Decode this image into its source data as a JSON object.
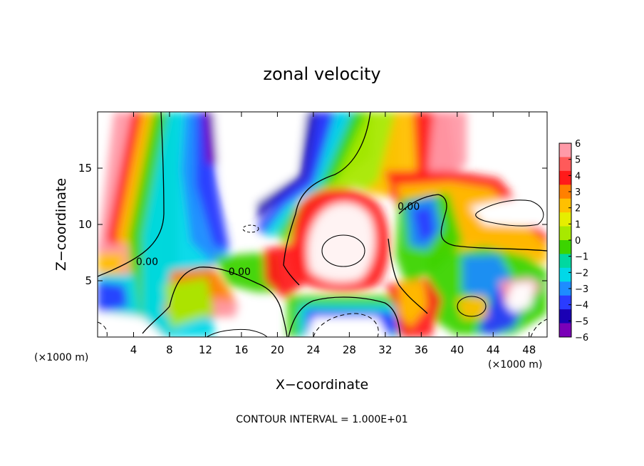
{
  "chart_data": {
    "type": "heatmap",
    "title": "zonal velocity",
    "xlabel": "X−coordinate",
    "ylabel": "Z−coordinate",
    "x_unit_left": "(×1000 m)",
    "x_unit_right": "(×1000 m)",
    "footer": "CONTOUR INTERVAL = 1.000E+01",
    "xlim": [
      0,
      50
    ],
    "ylim": [
      0,
      20
    ],
    "x_ticks": [
      4,
      8,
      12,
      16,
      20,
      24,
      28,
      32,
      36,
      40,
      44,
      48
    ],
    "y_ticks": [
      5,
      10,
      15
    ],
    "colorbar": {
      "ticks": [
        "6",
        "5",
        "4",
        "3",
        "2",
        "1",
        "0",
        "−1",
        "−2",
        "−3",
        "−4",
        "−5",
        "−6"
      ],
      "colors": [
        "#ff9aa8",
        "#ff5a5a",
        "#ff1a1a",
        "#ff8000",
        "#ffc000",
        "#e6ee00",
        "#a8e800",
        "#3cd400",
        "#00d8a0",
        "#00d8e8",
        "#1e8cff",
        "#2a3cff",
        "#1a00b4",
        "#7a00b8"
      ]
    },
    "contour_labels": [
      {
        "text": "0.00",
        "x": 5.5,
        "z": 6.4
      },
      {
        "text": "0.00",
        "x": 15.8,
        "z": 5.5
      },
      {
        "text": "0.00",
        "x": 34.6,
        "z": 11.3
      }
    ]
  }
}
